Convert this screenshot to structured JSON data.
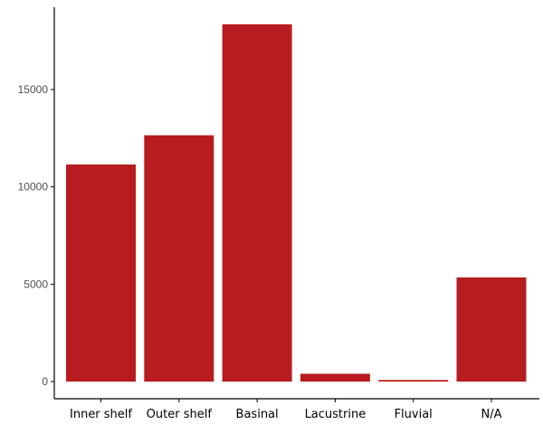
{
  "chart_data": {
    "type": "bar",
    "title": "",
    "xlabel": "",
    "ylabel": "",
    "categories": [
      "Inner shelf",
      "Outer shelf",
      "Basinal",
      "Lacustrine",
      "Fluvial",
      "N/A"
    ],
    "values": [
      11150,
      12650,
      18350,
      400,
      80,
      5350
    ],
    "ylim": [
      0,
      18500
    ],
    "yticks": [
      0,
      5000,
      10000,
      15000
    ],
    "ytick_labels": [
      "0",
      "5000",
      "10000",
      "15000"
    ],
    "grid": false,
    "legend": "none",
    "colors": {
      "bar": "#b71c1f",
      "axis": "#000000"
    }
  }
}
